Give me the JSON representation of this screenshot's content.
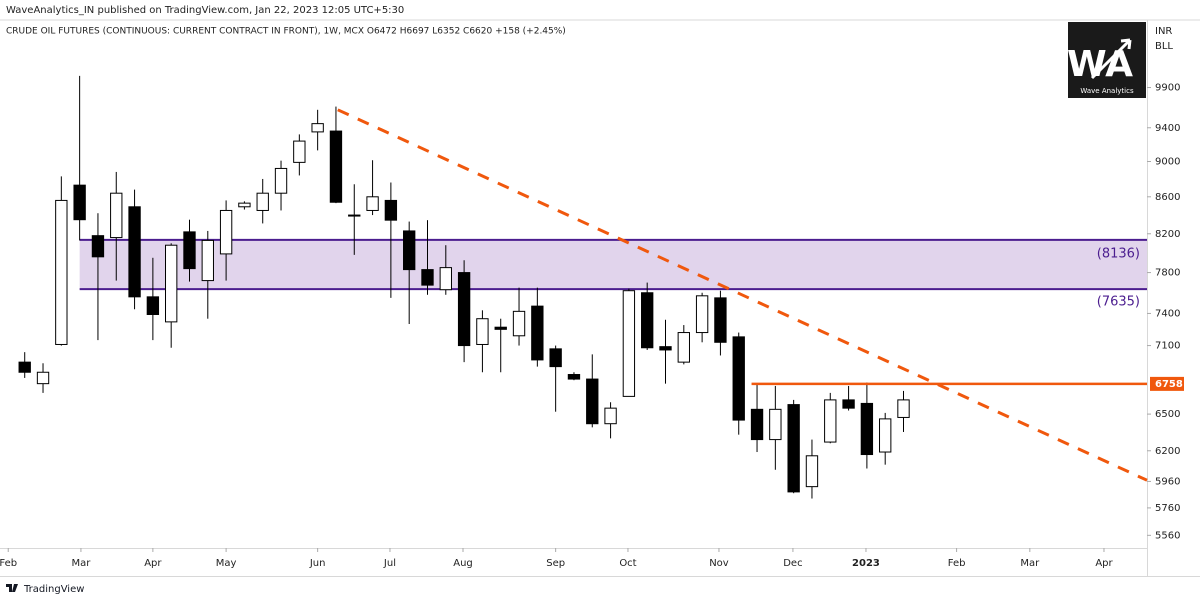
{
  "header": "WaveAnalytics_IN published on TradingView.com, Jan 22, 2023 12:05 UTC+5:30",
  "footer": "TradingView",
  "logo": {
    "initials": "WA",
    "text": "Wave Analytics"
  },
  "chart_data": {
    "type": "candlestick",
    "title": "CRUDE OIL FUTURES (CONTINUOUS: CURRENT CONTRACT IN FRONT), 1W, MCX  O6472  H6697  L6352  C6620  +158 (+2.45%)",
    "units": [
      "INR",
      "BLL"
    ],
    "log": true,
    "grid": false,
    "up_color": "#ffffff",
    "down_color": "#000000",
    "ylim": [
      5470,
      10800
    ],
    "yticks": [
      5560,
      5760,
      5960,
      6200,
      6500,
      7100,
      7400,
      7800,
      8200,
      8600,
      9000,
      9400,
      9900
    ],
    "xlim": [
      -1.35,
      61.3
    ],
    "xticks": [
      {
        "value": -0.9,
        "label": "Feb"
      },
      {
        "value": 3.07,
        "label": "Mar"
      },
      {
        "value": 7.0,
        "label": "Apr"
      },
      {
        "value": 11.0,
        "label": "May"
      },
      {
        "value": 16.0,
        "label": "Jun"
      },
      {
        "value": 19.95,
        "label": "Jul"
      },
      {
        "value": 23.94,
        "label": "Aug"
      },
      {
        "value": 29.0,
        "label": "Sep"
      },
      {
        "value": 32.95,
        "label": "Oct"
      },
      {
        "value": 37.92,
        "label": "Nov"
      },
      {
        "value": 41.96,
        "label": "Dec"
      },
      {
        "value": 45.95,
        "label": "2023"
      },
      {
        "value": 50.9,
        "label": "Feb"
      },
      {
        "value": 54.9,
        "label": "Mar"
      },
      {
        "value": 58.95,
        "label": "Apr"
      }
    ],
    "candles": {
      "open": [
        6950,
        6760,
        7110,
        8730,
        8180,
        8160,
        8490,
        7560,
        7320,
        8220,
        7720,
        7990,
        8490,
        8450,
        8640,
        8990,
        9350,
        9360,
        8400,
        8450,
        8560,
        8230,
        7830,
        7630,
        7800,
        7110,
        7270,
        7190,
        7470,
        7070,
        6840,
        6800,
        6420,
        6650,
        7600,
        7090,
        6950,
        7220,
        7550,
        7180,
        6540,
        6290,
        6580,
        5920,
        6270,
        6620,
        6590,
        6190,
        6472
      ],
      "high": [
        7040,
        6940,
        8830,
        10050,
        8420,
        8880,
        8680,
        7950,
        8100,
        8350,
        8230,
        8560,
        8550,
        8800,
        9010,
        9320,
        9620,
        9660,
        8740,
        9015,
        8760,
        8330,
        8345,
        8080,
        7925,
        7430,
        7350,
        7650,
        7650,
        7100,
        6860,
        7020,
        6600,
        7640,
        7700,
        7340,
        7290,
        7600,
        7620,
        7220,
        6760,
        6740,
        6620,
        6290,
        6680,
        6740,
        6770,
        6510,
        6697
      ],
      "low": [
        6810,
        6680,
        7100,
        8130,
        7150,
        7720,
        7440,
        7150,
        7080,
        7710,
        7350,
        7720,
        8460,
        8310,
        8450,
        8840,
        9130,
        8530,
        7980,
        8400,
        7550,
        7300,
        7580,
        7580,
        6950,
        6860,
        6860,
        7100,
        6910,
        6520,
        6790,
        6390,
        6300,
        6650,
        7060,
        6760,
        6930,
        7130,
        7010,
        6330,
        6190,
        6050,
        5870,
        5830,
        6260,
        6530,
        6060,
        6090,
        6352
      ],
      "close": [
        6860,
        6860,
        8560,
        8350,
        7960,
        8640,
        7560,
        7390,
        8080,
        7840,
        8130,
        8450,
        8530,
        8640,
        8920,
        9240,
        9450,
        8540,
        8390,
        8600,
        8345,
        7830,
        7675,
        7850,
        7100,
        7350,
        7250,
        7420,
        6970,
        6910,
        6800,
        6420,
        6550,
        7620,
        7080,
        7060,
        7220,
        7570,
        7130,
        6450,
        6290,
        6540,
        5880,
        6160,
        6620,
        6550,
        6170,
        6460,
        6620
      ]
    },
    "zone": {
      "top": 8136,
      "bottom": 7635,
      "top_label": "(8136)",
      "bottom_label": "(7635)",
      "start": 3.0,
      "fill": "#e1d4ec",
      "color": "#4b1d8f"
    },
    "level": {
      "value": 6758,
      "start": 39.7,
      "color": "#f0580d"
    },
    "trendline": {
      "start": [
        17.1,
        9620
      ],
      "end": [
        61.3,
        5969
      ],
      "color": "#f0580d"
    }
  }
}
